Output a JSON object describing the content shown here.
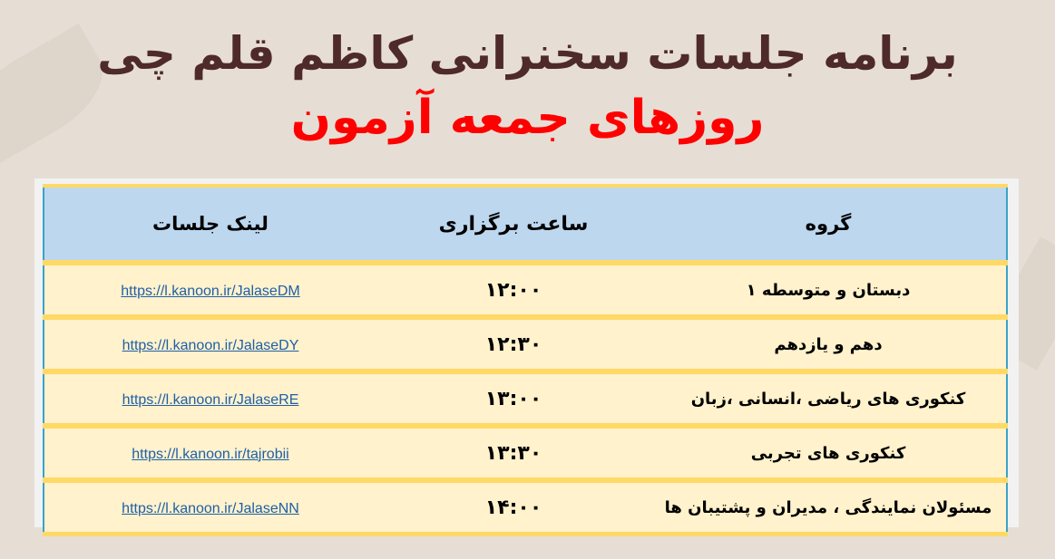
{
  "title": {
    "line1": "برنامه جلسات سخنرانی کاظم قلم چی",
    "line2": "روزهای جمعه آزمون"
  },
  "colors": {
    "title_line1": "#4f2a2a",
    "title_line2": "#ff0000",
    "header_bg": "#bdd7ee",
    "row_bg": "#fff2cc",
    "separator": "#ffd966",
    "link": "#1f5fa8"
  },
  "table": {
    "headers": {
      "group": "گروه",
      "time": "ساعت برگزاری",
      "link": "لینک جلسات"
    },
    "rows": [
      {
        "group": "دبستان و متوسطه ۱",
        "time": "۱۲:۰۰",
        "link": "https://l.kanoon.ir/JalaseDM"
      },
      {
        "group": "دهم و یازدهم",
        "time": "۱۲:۳۰",
        "link": "https://l.kanoon.ir/JalaseDY"
      },
      {
        "group": "کنکوری های ریاضی ،انسانی ،زبان",
        "time": "۱۳:۰۰",
        "link": "https://l.kanoon.ir/JalaseRE"
      },
      {
        "group": "کنکوری های تجربی",
        "time": "۱۳:۳۰",
        "link": "https://l.kanoon.ir/tajrobii"
      },
      {
        "group": "مسئولان نمایندگی ، مدیران و پشتیبان ها",
        "time": "۱۴:۰۰",
        "link": "https://l.kanoon.ir/JalaseNN"
      }
    ]
  }
}
